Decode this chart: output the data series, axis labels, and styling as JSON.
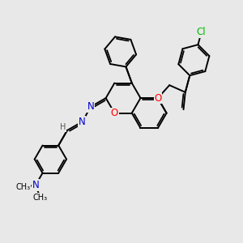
{
  "bg_color": "#e8e8e8",
  "bond_color": "#000000",
  "bond_width": 1.4,
  "atom_colors": {
    "O": "#ff0000",
    "N": "#0000cc",
    "Cl": "#00bb00",
    "H": "#555555",
    "C": "#000000"
  },
  "font_size": 8.5,
  "xlim": [
    0,
    10
  ],
  "ylim": [
    0,
    10
  ]
}
